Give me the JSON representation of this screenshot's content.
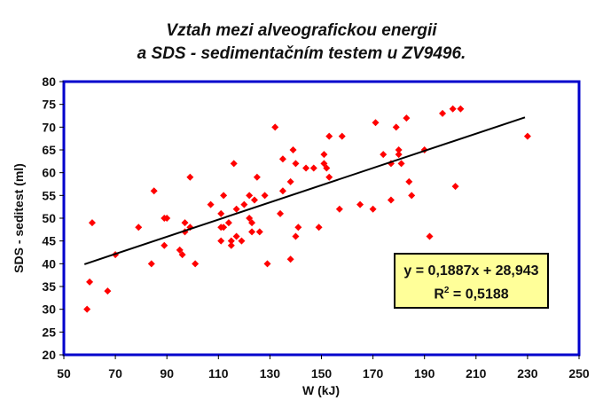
{
  "title_line1": "Vztah mezi alveografickou energii",
  "title_line2": "a SDS - sedimentačním testem u ZV9496.",
  "legend": {
    "equation": "y = 0,1887x + 28,943",
    "r2_prefix": "R",
    "r2_sup": "2",
    "r2_value": " = 0,5188"
  },
  "colors": {
    "points": "#ff0000",
    "trendline": "#000000",
    "plot_border": "#0000cc",
    "legend_bg": "#ffff99"
  },
  "chart_data": {
    "type": "scatter",
    "title": "Vztah mezi alveografickou energii a SDS - sedimentačním testem u ZV9496.",
    "xlabel": "W (kJ)",
    "ylabel": "SDS - seditest (ml)",
    "xlim": [
      50,
      250
    ],
    "ylim": [
      20,
      80
    ],
    "xticks": [
      50,
      70,
      90,
      110,
      130,
      150,
      170,
      190,
      210,
      230,
      250
    ],
    "yticks": [
      20,
      25,
      30,
      35,
      40,
      45,
      50,
      55,
      60,
      65,
      70,
      75,
      80
    ],
    "grid": false,
    "legend_position": "inside lower right",
    "trendline": {
      "slope": 0.1887,
      "intercept": 28.943,
      "r2": 0.5188,
      "x_range": [
        58,
        229
      ]
    },
    "points": [
      [
        59,
        30
      ],
      [
        60,
        36
      ],
      [
        61,
        49
      ],
      [
        67,
        34
      ],
      [
        70,
        42
      ],
      [
        79,
        48
      ],
      [
        84,
        40
      ],
      [
        85,
        56
      ],
      [
        89,
        44
      ],
      [
        89,
        50
      ],
      [
        90,
        50
      ],
      [
        95,
        43
      ],
      [
        96,
        42
      ],
      [
        97,
        49
      ],
      [
        97,
        47
      ],
      [
        99,
        48
      ],
      [
        99,
        59
      ],
      [
        101,
        40
      ],
      [
        107,
        53
      ],
      [
        111,
        51
      ],
      [
        111,
        45
      ],
      [
        111,
        48
      ],
      [
        112,
        55
      ],
      [
        112,
        48
      ],
      [
        114,
        49
      ],
      [
        115,
        45
      ],
      [
        115,
        44
      ],
      [
        116,
        62
      ],
      [
        117,
        46
      ],
      [
        117,
        52
      ],
      [
        119,
        45
      ],
      [
        120,
        53
      ],
      [
        122,
        55
      ],
      [
        122,
        50
      ],
      [
        123,
        49
      ],
      [
        123,
        47
      ],
      [
        124,
        54
      ],
      [
        125,
        59
      ],
      [
        126,
        47
      ],
      [
        128,
        55
      ],
      [
        129,
        40
      ],
      [
        132,
        70
      ],
      [
        134,
        51
      ],
      [
        135,
        63
      ],
      [
        135,
        56
      ],
      [
        138,
        41
      ],
      [
        138,
        58
      ],
      [
        139,
        65
      ],
      [
        140,
        46
      ],
      [
        140,
        62
      ],
      [
        141,
        48
      ],
      [
        144,
        61
      ],
      [
        147,
        61
      ],
      [
        149,
        48
      ],
      [
        151,
        64
      ],
      [
        151,
        62
      ],
      [
        152,
        61
      ],
      [
        153,
        59
      ],
      [
        153,
        68
      ],
      [
        157,
        52
      ],
      [
        158,
        68
      ],
      [
        165,
        53
      ],
      [
        170,
        52
      ],
      [
        171,
        71
      ],
      [
        174,
        64
      ],
      [
        177,
        54
      ],
      [
        177,
        62
      ],
      [
        179,
        70
      ],
      [
        180,
        65
      ],
      [
        180,
        64
      ],
      [
        181,
        62
      ],
      [
        183,
        72
      ],
      [
        184,
        58
      ],
      [
        185,
        55
      ],
      [
        190,
        65
      ],
      [
        192,
        46
      ],
      [
        197,
        73
      ],
      [
        201,
        74
      ],
      [
        202,
        57
      ],
      [
        204,
        74
      ],
      [
        230,
        68
      ]
    ]
  }
}
